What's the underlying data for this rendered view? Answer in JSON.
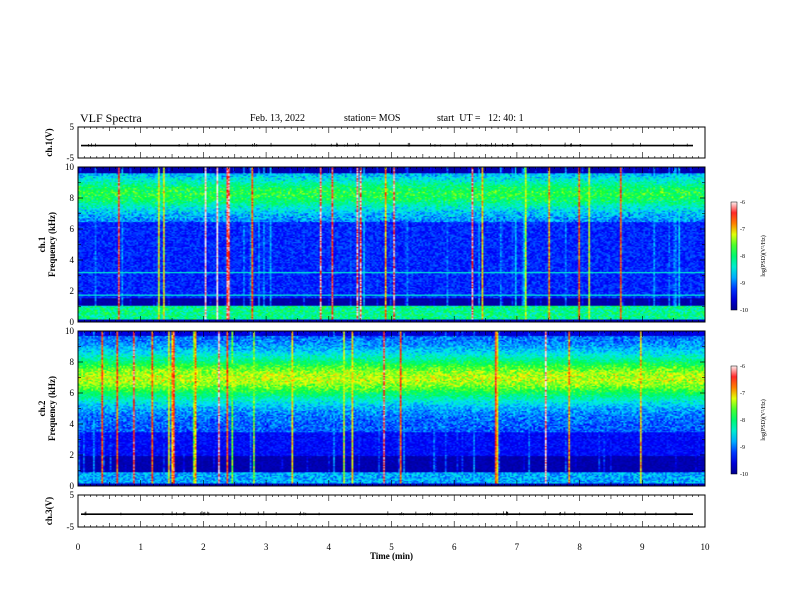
{
  "header": {
    "title": "VLF Spectra",
    "date": "Feb. 13, 2022",
    "station": "station= MOS",
    "start": "start  UT =   12: 40: 1"
  },
  "chart_data": [
    {
      "type": "line",
      "panel": "ch1-waveform",
      "ylabel": "ch.1(V)",
      "ylim": [
        -5,
        5
      ],
      "yticks": [
        "5",
        "-5"
      ],
      "level": -1,
      "xlim": [
        0,
        10
      ]
    },
    {
      "type": "heatmap",
      "panel": "ch1-spectrogram",
      "ylabel": "ch.1\nFrequency (kHz)",
      "ylim": [
        0,
        10
      ],
      "yticks": [
        "0",
        "2",
        "4",
        "6",
        "8",
        "10"
      ],
      "xlim": [
        0,
        10
      ],
      "colorbar": {
        "label": "log(PSD)(V²/Hz)",
        "ticks": [
          "-6",
          "-7",
          "-8",
          "-9",
          "-10"
        ],
        "range": [
          -10,
          -6
        ]
      }
    },
    {
      "type": "heatmap",
      "panel": "ch2-spectrogram",
      "ylabel": "ch.2\nFrequency (kHz)",
      "ylim": [
        0,
        10
      ],
      "yticks": [
        "0",
        "2",
        "4",
        "6",
        "8",
        "10"
      ],
      "xlim": [
        0,
        10
      ],
      "colorbar": {
        "label": "log(PSD)(V²/Hz)",
        "ticks": [
          "-6",
          "-7",
          "-8",
          "-9",
          "-10"
        ],
        "range": [
          -10,
          -6
        ]
      }
    },
    {
      "type": "line",
      "panel": "ch3-waveform",
      "ylabel": "ch.3(V)",
      "ylim": [
        -5,
        5
      ],
      "yticks": [
        "5",
        "-5"
      ],
      "level": -1,
      "xlim": [
        0,
        10
      ]
    }
  ],
  "xaxis": {
    "label": "Time  (min)",
    "ticks": [
      "0",
      "1",
      "2",
      "3",
      "4",
      "5",
      "6",
      "7",
      "8",
      "9",
      "10"
    ]
  },
  "colors": {
    "spectrogram_scale": [
      "#00008b",
      "#0000ff",
      "#00e5ff",
      "#00ff40",
      "#ffff00",
      "#ff0000",
      "#ffffff"
    ]
  }
}
